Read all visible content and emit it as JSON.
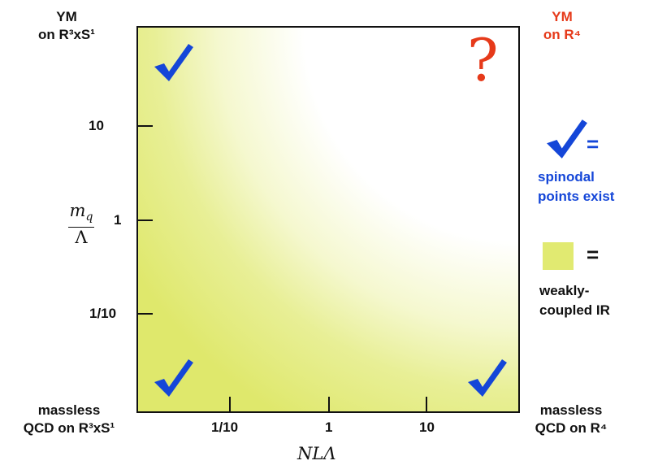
{
  "corners": {
    "top_left": [
      "YM",
      "on R³xS¹"
    ],
    "top_right": [
      "YM",
      "on R⁴"
    ],
    "bottom_left": [
      "massless",
      "QCD on R³xS¹"
    ],
    "bottom_right": [
      "massless",
      "QCD on R⁴"
    ]
  },
  "plot": {
    "question_mark": "?",
    "checkmarks": [
      "top-left",
      "bottom-left",
      "bottom-right"
    ]
  },
  "y_axis": {
    "ticks": [
      "10",
      "1",
      "1/10"
    ],
    "label_numerator": "m",
    "label_numerator_sub": "q",
    "label_denominator": "Λ"
  },
  "x_axis": {
    "ticks": [
      "1/10",
      "1",
      "10"
    ],
    "label": "NLΛ"
  },
  "legend": {
    "check_equals": "=",
    "check_meaning": [
      "spinodal",
      "points exist"
    ],
    "swatch_equals": "=",
    "swatch_meaning": [
      "weakly-",
      "coupled IR"
    ]
  },
  "colors": {
    "check_blue": "#1446d8",
    "red": "#e63a1a",
    "weak_yellow": "#e1ea71"
  }
}
